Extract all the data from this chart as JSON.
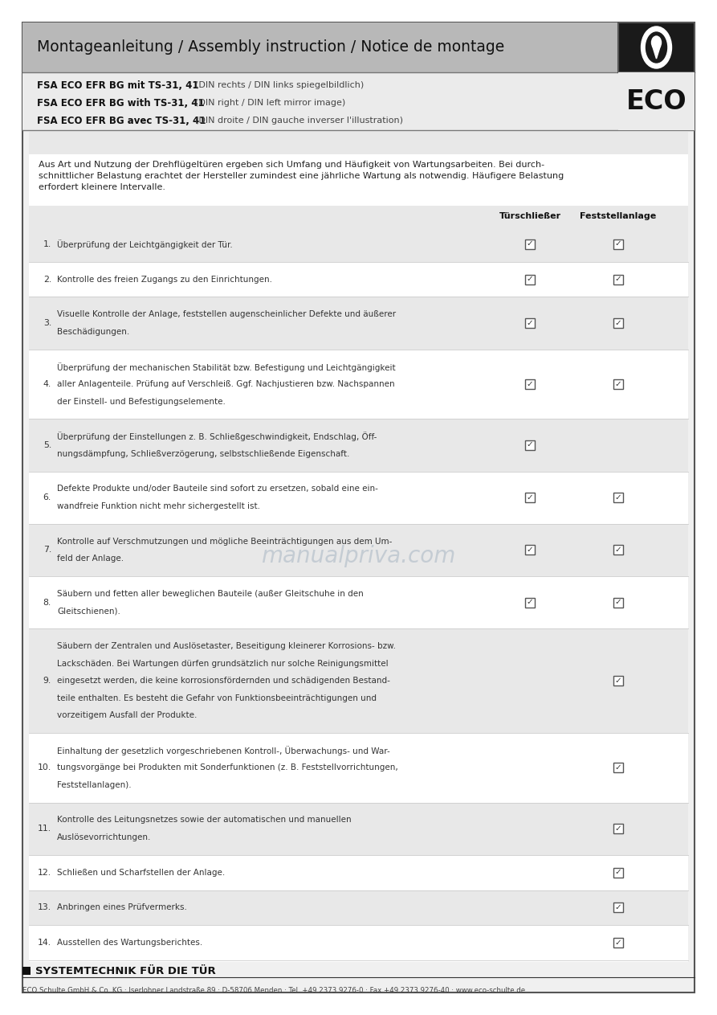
{
  "page_bg": "#ffffff",
  "header_bg": "#b8b8b8",
  "header_text": "Montageanleitung / Assembly instruction / Notice de montage",
  "subheader_bg": "#ebebeb",
  "subheader_lines": [
    [
      "FSA ECO EFR BG mit TS-31, 41",
      "(DIN rechts / DIN links spiegelbildlich)"
    ],
    [
      "FSA ECO EFR BG with TS-31, 41",
      "(DIN right / DIN left mirror image)"
    ],
    [
      "FSA ECO EFR BG avec TS-31, 41",
      "(DIN droite / DIN gauche inverser l'illustration)"
    ]
  ],
  "intro_lines": [
    "Aus Art und Nutzung der Drehflügeltüren ergeben sich Umfang und Häufigkeit von Wartungsarbeiten. Bei durch-",
    "schnittlicher Belastung erachtet der Hersteller zumindest eine jährliche Wartung als notwendig. Häufigere Belastung",
    "erfordert kleinere Intervalle."
  ],
  "col_headers": [
    "Türschließer",
    "Feststellanlage"
  ],
  "rows": [
    {
      "num": "1.",
      "text_lines": [
        "Überprüfung der Leichtgängigkeit der Tür."
      ],
      "ts": true,
      "fa": true,
      "shade": true
    },
    {
      "num": "2.",
      "text_lines": [
        "Kontrolle des freien Zugangs zu den Einrichtungen."
      ],
      "ts": true,
      "fa": true,
      "shade": false
    },
    {
      "num": "3.",
      "text_lines": [
        "Visuelle Kontrolle der Anlage, feststellen augenscheinlicher Defekte und äußerer",
        "Beschädigungen."
      ],
      "ts": true,
      "fa": true,
      "shade": true
    },
    {
      "num": "4.",
      "text_lines": [
        "Überprüfung der mechanischen Stabilität bzw. Befestigung und Leichtgängigkeit",
        "aller Anlagenteile. Prüfung auf Verschleiß. Ggf. Nachjustieren bzw. Nachspannen",
        "der Einstell- und Befestigungselemente."
      ],
      "ts": true,
      "fa": true,
      "shade": false
    },
    {
      "num": "5.",
      "text_lines": [
        "Überprüfung der Einstellungen z. B. Schließgeschwindigkeit, Endschlag, Öff-",
        "nungsdämpfung, Schließverzögerung, selbstschließende Eigenschaft."
      ],
      "ts": true,
      "fa": false,
      "shade": true
    },
    {
      "num": "6.",
      "text_lines": [
        "Defekte Produkte und/oder Bauteile sind sofort zu ersetzen, sobald eine ein-",
        "wandfreie Funktion nicht mehr sichergestellt ist."
      ],
      "ts": true,
      "fa": true,
      "shade": false
    },
    {
      "num": "7.",
      "text_lines": [
        "Kontrolle auf Verschmutzungen und mögliche Beeinträchtigungen aus dem Um-",
        "feld der Anlage."
      ],
      "ts": true,
      "fa": true,
      "shade": true
    },
    {
      "num": "8.",
      "text_lines": [
        "Säubern und fetten aller beweglichen Bauteile (außer Gleitschuhe in den",
        "Gleitschienen)."
      ],
      "ts": true,
      "fa": true,
      "shade": false
    },
    {
      "num": "9.",
      "text_lines": [
        "Säubern der Zentralen und Auslösetaster, Beseitigung kleinerer Korrosions- bzw.",
        "Lackschäden. Bei Wartungen dürfen grundsätzlich nur solche Reinigungsmittel",
        "eingesetzt werden, die keine korrosionsfördernden und schädigenden Bestand-",
        "teile enthalten. Es besteht die Gefahr von Funktionsbeeinträchtigungen und",
        "vorzeitigem Ausfall der Produkte."
      ],
      "ts": false,
      "fa": true,
      "shade": true
    },
    {
      "num": "10.",
      "text_lines": [
        "Einhaltung der gesetzlich vorgeschriebenen Kontroll-, Überwachungs- und War-",
        "tungsvorgänge bei Produkten mit Sonderfunktionen (z. B. Feststellvorrichtungen,",
        "Feststellanlagen)."
      ],
      "ts": false,
      "fa": true,
      "shade": false
    },
    {
      "num": "11.",
      "text_lines": [
        "Kontrolle des Leitungsnetzes sowie der automatischen und manuellen",
        "Auslösevorrichtungen."
      ],
      "ts": false,
      "fa": true,
      "shade": true
    },
    {
      "num": "12.",
      "text_lines": [
        "Schließen und Scharfstellen der Anlage."
      ],
      "ts": false,
      "fa": true,
      "shade": false
    },
    {
      "num": "13.",
      "text_lines": [
        "Anbringen eines Prüfvermerks."
      ],
      "ts": false,
      "fa": true,
      "shade": true
    },
    {
      "num": "14.",
      "text_lines": [
        "Ausstellen des Wartungsberichtes."
      ],
      "ts": false,
      "fa": true,
      "shade": false
    }
  ],
  "footer_title": "SYSTEMTECHNIK FÜR DIE TÜR",
  "footer_text": "ECO Schulte GmbH & Co. KG · Iserlohner Landstraße 89 · D-58706 Menden · Tel. +49 2373 9276-0 · Fax +49 2373 9276-40 · www.eco-schulte.de",
  "watermark_text": "manualpriva.com"
}
